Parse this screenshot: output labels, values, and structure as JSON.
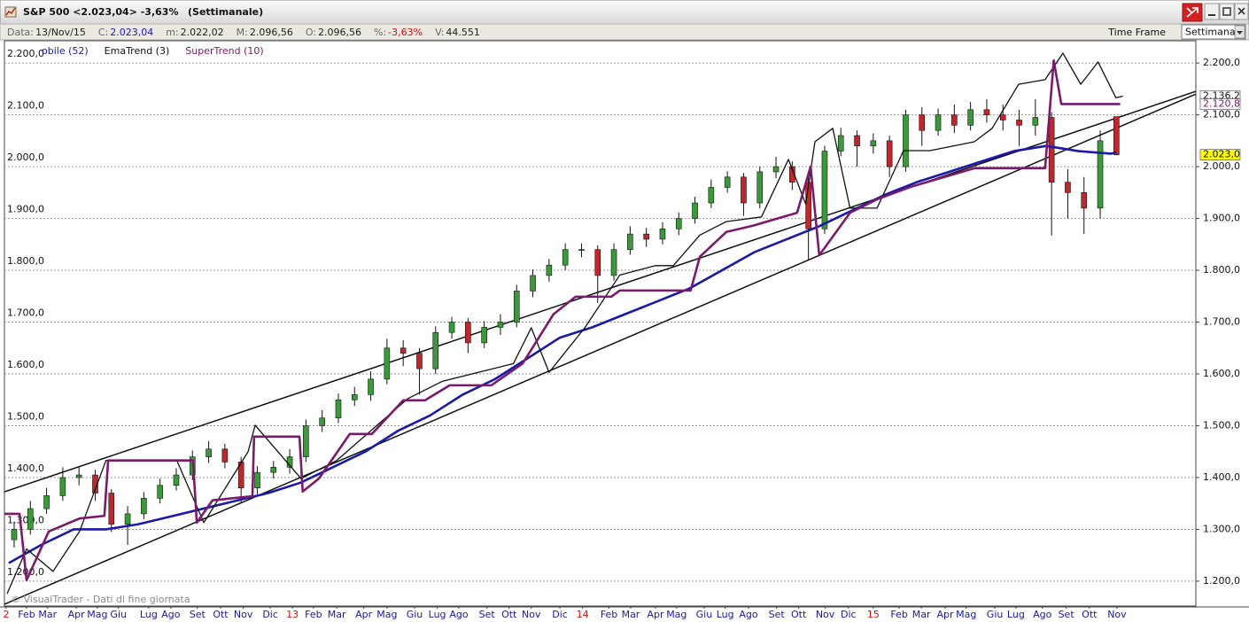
{
  "window": {
    "title": "S&P 500 <2.023,04> -3,63%",
    "subtitle": "(Settimanale)",
    "time_frame_label": "Time Frame",
    "time_frame": "Settimanale"
  },
  "info": [
    {
      "label": "Data:",
      "value": "13/Nov/15"
    },
    {
      "label": "C:",
      "value": "2.023,04",
      "color": "#1a1acc"
    },
    {
      "label": "m:",
      "value": "2.022,02"
    },
    {
      "label": "M:",
      "value": "2.096,56"
    },
    {
      "label": "O:",
      "value": "2.096,56"
    },
    {
      "label": "%:",
      "value": "-3,63%",
      "color": "#d01010"
    },
    {
      "label": "V:",
      "value": "44.551"
    }
  ],
  "chart_data": {
    "type": "candlestick",
    "x": [
      1,
      4,
      7,
      10,
      13,
      16,
      19,
      22,
      25,
      28,
      31,
      34,
      37,
      40,
      43,
      46,
      49,
      52,
      55,
      58,
      61,
      64,
      67,
      70,
      73,
      76,
      79,
      82,
      85,
      88,
      91,
      94,
      97,
      100,
      103,
      106,
      109,
      112,
      115,
      118,
      121,
      124,
      127,
      130,
      133,
      136,
      139,
      142,
      145,
      148,
      151,
      154,
      157,
      160,
      163,
      166,
      169,
      172,
      175,
      178,
      181,
      184,
      187,
      190,
      193,
      196,
      199,
      202,
      205
    ],
    "open": [
      1280,
      1300,
      1340,
      1365,
      1400,
      1405,
      1370,
      1310,
      1330,
      1360,
      1385,
      1405,
      1440,
      1455,
      1430,
      1380,
      1410,
      1420,
      1440,
      1500,
      1515,
      1550,
      1560,
      1590,
      1650,
      1640,
      1610,
      1680,
      1700,
      1660,
      1690,
      1700,
      1760,
      1790,
      1810,
      1840,
      1840,
      1790,
      1840,
      1870,
      1860,
      1880,
      1900,
      1930,
      1960,
      1980,
      1930,
      1990,
      2000,
      1970,
      1880,
      2030,
      2060,
      2040,
      2050,
      2000,
      2100,
      2070,
      2100,
      2080,
      2110,
      2100,
      2090,
      2080,
      2095,
      1970,
      1950,
      1920,
      2096.56
    ],
    "high": [
      1315,
      1355,
      1380,
      1420,
      1422,
      1415,
      1378,
      1345,
      1372,
      1398,
      1418,
      1452,
      1470,
      1465,
      1440,
      1422,
      1432,
      1455,
      1512,
      1530,
      1562,
      1575,
      1605,
      1668,
      1665,
      1650,
      1692,
      1710,
      1708,
      1702,
      1715,
      1772,
      1802,
      1822,
      1852,
      1852,
      1848,
      1852,
      1885,
      1882,
      1893,
      1912,
      1942,
      1975,
      1991,
      1988,
      2000,
      2019,
      2010,
      1980,
      2040,
      2075,
      2070,
      2064,
      2060,
      2110,
      2115,
      2112,
      2120,
      2125,
      2130,
      2120,
      2110,
      2130,
      2105,
      1995,
      1980,
      2070,
      2096.56
    ],
    "low": [
      1265,
      1290,
      1330,
      1355,
      1385,
      1355,
      1295,
      1270,
      1320,
      1350,
      1375,
      1395,
      1428,
      1418,
      1350,
      1368,
      1398,
      1408,
      1430,
      1488,
      1505,
      1538,
      1548,
      1580,
      1615,
      1560,
      1600,
      1668,
      1640,
      1650,
      1675,
      1690,
      1748,
      1778,
      1800,
      1825,
      1737,
      1780,
      1830,
      1845,
      1850,
      1868,
      1890,
      1920,
      1950,
      1905,
      1920,
      1978,
      1955,
      1820,
      1870,
      2020,
      2000,
      2025,
      1980,
      1990,
      2040,
      2060,
      2065,
      2070,
      2085,
      2070,
      2040,
      2060,
      1867,
      1900,
      1870,
      1900,
      2022.02
    ],
    "close": [
      1300,
      1340,
      1365,
      1400,
      1405,
      1370,
      1310,
      1330,
      1360,
      1385,
      1405,
      1440,
      1455,
      1430,
      1380,
      1410,
      1420,
      1440,
      1500,
      1515,
      1550,
      1560,
      1590,
      1650,
      1640,
      1610,
      1680,
      1700,
      1660,
      1690,
      1700,
      1760,
      1790,
      1810,
      1840,
      1840,
      1790,
      1840,
      1870,
      1860,
      1880,
      1900,
      1930,
      1960,
      1980,
      1930,
      1990,
      2000,
      1970,
      1880,
      2030,
      2060,
      2040,
      2050,
      2000,
      2100,
      2070,
      2100,
      2080,
      2110,
      2100,
      2090,
      2080,
      2095,
      1970,
      1950,
      1920,
      2050,
      2023.04
    ],
    "up_color": "#3a9a3a",
    "down_color": "#c0272d",
    "series": [
      {
        "name": "obile (52)",
        "color": "#1a1aa8",
        "x": [
          0,
          6,
          12,
          18,
          24,
          30,
          36,
          42,
          48,
          54,
          60,
          66,
          72,
          78,
          84,
          90,
          96,
          102,
          108,
          114,
          120,
          126,
          132,
          138,
          144,
          150,
          156,
          162,
          168,
          174,
          180,
          186,
          192,
          198,
          204,
          205
        ],
        "values": [
          1235,
          1270,
          1300,
          1300,
          1310,
          1325,
          1340,
          1355,
          1370,
          1390,
          1420,
          1450,
          1490,
          1520,
          1560,
          1590,
          1630,
          1670,
          1690,
          1715,
          1740,
          1765,
          1800,
          1835,
          1860,
          1885,
          1915,
          1945,
          1970,
          1990,
          2010,
          2030,
          2040,
          2030,
          2025,
          2028
        ]
      },
      {
        "name": "EmaTrend (3)",
        "color": "#111111",
        "x": [
          -0.3,
          3.3,
          8.2,
          13.1,
          18.0,
          23.0,
          31.1,
          36.1,
          44.3,
          45.6,
          54.1,
          60.7,
          67.2,
          73.8,
          80.3,
          86.9,
          93.4,
          96.7,
          100.0,
          106.6,
          113.1,
          119.7,
          123.0,
          127.9,
          132.8,
          139.3,
          144.3,
          147.5,
          149.2,
          152.5,
          155.7,
          160.7,
          165.6,
          170.5,
          178.7,
          182.0,
          186.9,
          191.8,
          195.1,
          198.4,
          201.6,
          204.9,
          206.2
        ],
        "values": [
          1176,
          1262,
          1219,
          1296,
          1433,
          1433,
          1433,
          1313,
          1450,
          1501,
          1398,
          1433,
          1492,
          1552,
          1586,
          1603,
          1620,
          1689,
          1603,
          1689,
          1791,
          1809,
          1809,
          1868,
          1894,
          1903,
          2014,
          1928,
          2048,
          2074,
          1920,
          1920,
          2031,
          2031,
          2048,
          2074,
          2159,
          2168,
          2219,
          2159,
          2202,
          2133,
          2136.2
        ]
      },
      {
        "name": "SuperTrend (10)",
        "color": "#7a1a6a",
        "x": [
          -0.8,
          2.0,
          3.3,
          7.4,
          13.1,
          17.7,
          18.4,
          34.1,
          34.8,
          37.7,
          45.1,
          45.4,
          53.8,
          54.4,
          57.4,
          63.1,
          67.2,
          73.0,
          77.0,
          81.6,
          89.3,
          95.1,
          100.8,
          104.9,
          111.5,
          113.1,
          126.2,
          127.9,
          132.8,
          137.7,
          145.9,
          148.4,
          150.0,
          155.7,
          160.7,
          167.2,
          178.7,
          191.8,
          193.4,
          194.8,
          205.7
        ],
        "values": [
          1330,
          1330,
          1202,
          1296,
          1321,
          1326,
          1433,
          1433,
          1313,
          1356,
          1364,
          1479,
          1479,
          1373,
          1398,
          1484,
          1484,
          1549,
          1549,
          1578,
          1578,
          1620,
          1715,
          1749,
          1749,
          1761,
          1761,
          1826,
          1874,
          1886,
          1911,
          2000,
          1829,
          1911,
          1937,
          1962,
          1997,
          1997,
          2205,
          2120.8,
          2120.8
        ]
      }
    ],
    "trendlines": [
      {
        "color": "#111111",
        "x": [
          -0.8,
          219.7
        ],
        "values": [
          1372.6,
          2145.3
        ]
      },
      {
        "color": "#111111",
        "x": [
          -0.8,
          219.7
        ],
        "values": [
          1155.6,
          2140
        ]
      }
    ],
    "tags": [
      {
        "value": 2136.2,
        "label": "2.136,2",
        "color": "#111111",
        "background": "#ffffff"
      },
      {
        "value": 2120.8,
        "label": "2.120,8",
        "color": "#7a1a6a",
        "background": "#ffffff"
      },
      {
        "value": 2023.0,
        "label": "2.023,0",
        "color": "#111111",
        "background": "#ffff00"
      }
    ],
    "xlim": [
      -0.8,
      219.7
    ],
    "ylim": [
      1152,
      2243
    ],
    "yticks": [
      {
        "value": 1200,
        "label": "1.200,0"
      },
      {
        "value": 1300,
        "label": "1.300,0"
      },
      {
        "value": 1400,
        "label": "1.400,0"
      },
      {
        "value": 1500,
        "label": "1.500,0"
      },
      {
        "value": 1600,
        "label": "1.600,0"
      },
      {
        "value": 1700,
        "label": "1.700,0"
      },
      {
        "value": 1800,
        "label": "1.800,0"
      },
      {
        "value": 1900,
        "label": "1.900,0"
      },
      {
        "value": 2000,
        "label": "2.000,0"
      },
      {
        "value": 2100,
        "label": "2.100,0"
      },
      {
        "value": 2200,
        "label": "2.200,0"
      }
    ],
    "xticks": [
      {
        "value": -0.5,
        "label": "2"
      },
      {
        "value": 3.3,
        "label": "Feb"
      },
      {
        "value": 7.2,
        "label": "Mar"
      },
      {
        "value": 12.5,
        "label": "Apr"
      },
      {
        "value": 16.4,
        "label": "Mag"
      },
      {
        "value": 20.3,
        "label": "Giu"
      },
      {
        "value": 25.9,
        "label": "Lug"
      },
      {
        "value": 30,
        "label": "Ago"
      },
      {
        "value": 34.9,
        "label": "Set"
      },
      {
        "value": 39.2,
        "label": "Ott"
      },
      {
        "value": 43.4,
        "label": "Nov"
      },
      {
        "value": 48.4,
        "label": "Dic"
      },
      {
        "value": 52.5,
        "label": "13"
      },
      {
        "value": 56.4,
        "label": "Feb"
      },
      {
        "value": 60.7,
        "label": "Mar"
      },
      {
        "value": 65.7,
        "label": "Apr"
      },
      {
        "value": 70,
        "label": "Mag"
      },
      {
        "value": 75.1,
        "label": "Giu"
      },
      {
        "value": 79.3,
        "label": "Lug"
      },
      {
        "value": 83.3,
        "label": "Ago"
      },
      {
        "value": 88.5,
        "label": "Set"
      },
      {
        "value": 92.6,
        "label": "Ott"
      },
      {
        "value": 96.7,
        "label": "Nov"
      },
      {
        "value": 102,
        "label": "Dic"
      },
      {
        "value": 106.2,
        "label": "14"
      },
      {
        "value": 111.1,
        "label": "Feb"
      },
      {
        "value": 115.1,
        "label": "Mar"
      },
      {
        "value": 119.7,
        "label": "Apr"
      },
      {
        "value": 123.6,
        "label": "Mag"
      },
      {
        "value": 128.7,
        "label": "Giu"
      },
      {
        "value": 132.6,
        "label": "Lug"
      },
      {
        "value": 136.9,
        "label": "Ago"
      },
      {
        "value": 142.1,
        "label": "Set"
      },
      {
        "value": 146.2,
        "label": "Ott"
      },
      {
        "value": 151.1,
        "label": "Nov"
      },
      {
        "value": 155.4,
        "label": "Dic"
      },
      {
        "value": 160,
        "label": "15"
      },
      {
        "value": 164.8,
        "label": "Feb"
      },
      {
        "value": 168.9,
        "label": "Mar"
      },
      {
        "value": 173.3,
        "label": "Apr"
      },
      {
        "value": 177.2,
        "label": "Mag"
      },
      {
        "value": 182.5,
        "label": "Giu"
      },
      {
        "value": 186.4,
        "label": "Lug"
      },
      {
        "value": 191.3,
        "label": "Ago"
      },
      {
        "value": 195.7,
        "label": "Set"
      },
      {
        "value": 200,
        "label": "Ott"
      },
      {
        "value": 205.1,
        "label": "Nov"
      }
    ],
    "month_label_color": "#1a1aa0",
    "year_label_color": "#d01010",
    "grid": true,
    "watermark": "© VisualTrader - Dati di fine giornata"
  }
}
